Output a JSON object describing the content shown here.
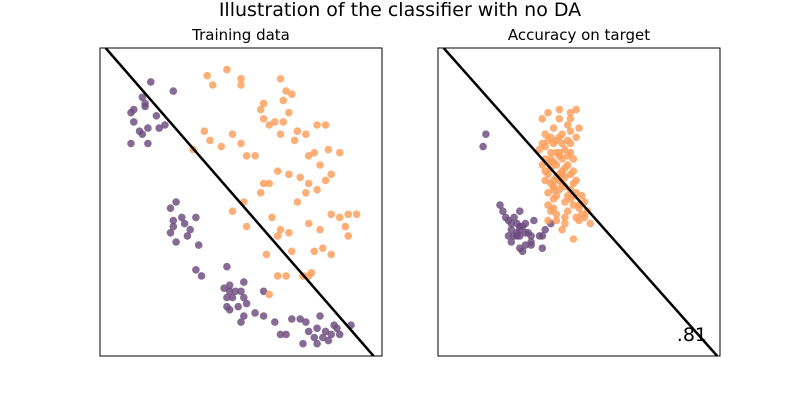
{
  "figure": {
    "title": "Illustration of the classifier with no DA"
  },
  "colors": {
    "class_0": "#6b4c7e",
    "class_1": "#fc9d59",
    "boundary": "#000000"
  },
  "chart_data": [
    {
      "type": "scatter",
      "title": "Training data",
      "xlabel": "",
      "ylabel": "",
      "xlim": [
        0,
        10
      ],
      "ylim": [
        0,
        10
      ],
      "ticks": "none",
      "decision_boundary": {
        "x": [
          0.2,
          9.7
        ],
        "y": [
          10.0,
          0.0
        ]
      },
      "series": [
        {
          "class": 0,
          "points": [
            [
              1.6,
              8.1
            ],
            [
              1.5,
              8.4
            ],
            [
              1.1,
              7.9
            ],
            [
              2.3,
              7.5
            ],
            [
              1.8,
              8.9
            ],
            [
              1.2,
              7.6
            ],
            [
              1.5,
              7.2
            ],
            [
              1.7,
              7.4
            ],
            [
              1.1,
              6.9
            ],
            [
              1.7,
              6.9
            ],
            [
              2.6,
              8.6
            ],
            [
              2.0,
              7.8
            ],
            [
              2.1,
              7.4
            ],
            [
              1.6,
              8.2
            ],
            [
              1.2,
              8.0
            ],
            [
              1.4,
              7.3
            ],
            [
              2.7,
              5.0
            ],
            [
              2.5,
              4.8
            ],
            [
              2.9,
              4.5
            ],
            [
              2.6,
              4.2
            ],
            [
              3.4,
              4.5
            ],
            [
              3.1,
              3.9
            ],
            [
              3.2,
              4.1
            ],
            [
              3.0,
              4.3
            ],
            [
              2.6,
              4.4
            ],
            [
              2.5,
              4.0
            ],
            [
              2.7,
              3.7
            ],
            [
              3.5,
              3.6
            ],
            [
              3.4,
              2.8
            ],
            [
              3.6,
              2.6
            ],
            [
              4.5,
              2.9
            ],
            [
              4.6,
              2.1
            ],
            [
              4.8,
              2.1
            ],
            [
              5.1,
              2.4
            ],
            [
              4.4,
              2.2
            ],
            [
              4.7,
              1.9
            ],
            [
              4.9,
              1.6
            ],
            [
              5.1,
              1.3
            ],
            [
              5.2,
              1.7
            ],
            [
              4.6,
              2.3
            ],
            [
              4.6,
              1.5
            ],
            [
              4.5,
              1.6
            ],
            [
              4.5,
              1.9
            ],
            [
              5.5,
              1.4
            ],
            [
              5.0,
              2.1
            ],
            [
              5.8,
              2.1
            ],
            [
              5.1,
              1.9
            ],
            [
              5.0,
              1.1
            ],
            [
              5.8,
              1.3
            ],
            [
              6.2,
              1.1
            ],
            [
              6.8,
              1.2
            ],
            [
              7.1,
              1.2
            ],
            [
              7.3,
              1.1
            ],
            [
              7.7,
              0.9
            ],
            [
              7.8,
              1.3
            ],
            [
              8.3,
              1.0
            ],
            [
              8.2,
              0.7
            ],
            [
              7.6,
              0.6
            ],
            [
              6.6,
              0.7
            ],
            [
              7.4,
              0.8
            ],
            [
              8.9,
              1.0
            ],
            [
              8.4,
              0.9
            ],
            [
              8.0,
              0.8
            ],
            [
              7.9,
              0.6
            ],
            [
              7.7,
              0.4
            ],
            [
              8.5,
              0.7
            ],
            [
              8.1,
              0.5
            ],
            [
              7.2,
              0.4
            ],
            [
              6.4,
              0.7
            ]
          ]
        },
        {
          "class": 1,
          "points": [
            [
              4.5,
              9.3
            ],
            [
              5.0,
              8.8
            ],
            [
              5.0,
              9.0
            ],
            [
              4.0,
              8.8
            ],
            [
              3.8,
              9.1
            ],
            [
              6.5,
              8.3
            ],
            [
              6.8,
              8.5
            ],
            [
              6.4,
              9.0
            ],
            [
              6.6,
              8.6
            ],
            [
              5.7,
              8.0
            ],
            [
              5.8,
              8.2
            ],
            [
              5.8,
              7.7
            ],
            [
              6.0,
              7.5
            ],
            [
              6.2,
              7.6
            ],
            [
              6.4,
              7.2
            ],
            [
              6.5,
              7.6
            ],
            [
              6.7,
              7.9
            ],
            [
              6.9,
              7.0
            ],
            [
              7.0,
              7.3
            ],
            [
              7.3,
              7.2
            ],
            [
              7.6,
              6.6
            ],
            [
              7.7,
              7.5
            ],
            [
              8.0,
              7.5
            ],
            [
              8.1,
              6.7
            ],
            [
              7.4,
              6.5
            ],
            [
              7.8,
              6.2
            ],
            [
              8.5,
              6.6
            ],
            [
              8.2,
              5.9
            ],
            [
              8.0,
              5.7
            ],
            [
              7.7,
              5.4
            ],
            [
              7.4,
              5.6
            ],
            [
              7.1,
              5.8
            ],
            [
              7.3,
              5.3
            ],
            [
              7.0,
              5.0
            ],
            [
              6.7,
              5.9
            ],
            [
              6.3,
              6.0
            ],
            [
              5.5,
              6.5
            ],
            [
              5.2,
              6.5
            ],
            [
              5.0,
              6.9
            ],
            [
              4.7,
              7.2
            ],
            [
              4.3,
              6.8
            ],
            [
              3.7,
              7.3
            ],
            [
              3.9,
              7.0
            ],
            [
              3.3,
              6.7
            ],
            [
              5.1,
              5.0
            ],
            [
              5.7,
              5.3
            ],
            [
              5.8,
              5.6
            ],
            [
              6.0,
              5.6
            ],
            [
              6.1,
              4.5
            ],
            [
              6.4,
              4.1
            ],
            [
              6.7,
              4.0
            ],
            [
              6.8,
              3.4
            ],
            [
              7.6,
              3.4
            ],
            [
              7.9,
              3.5
            ],
            [
              8.2,
              3.3
            ],
            [
              8.5,
              4.5
            ],
            [
              8.7,
              4.2
            ],
            [
              8.8,
              4.6
            ],
            [
              9.1,
              4.6
            ],
            [
              8.8,
              3.9
            ],
            [
              8.2,
              4.6
            ],
            [
              7.8,
              4.1
            ],
            [
              7.4,
              4.3
            ],
            [
              6.3,
              3.9
            ],
            [
              7.2,
              2.6
            ],
            [
              7.5,
              2.7
            ],
            [
              7.4,
              2.6
            ],
            [
              6.6,
              2.6
            ],
            [
              6.3,
              2.6
            ],
            [
              6.0,
              2.0
            ],
            [
              5.9,
              3.3
            ],
            [
              5.2,
              4.2
            ],
            [
              4.7,
              4.7
            ]
          ]
        }
      ]
    },
    {
      "type": "scatter",
      "title": "Accuracy on target",
      "xlabel": "",
      "ylabel": "",
      "xlim": [
        0,
        10
      ],
      "ylim": [
        0,
        10
      ],
      "ticks": "none",
      "annotation": ".81",
      "decision_boundary": {
        "x": [
          0.2,
          9.9
        ],
        "y": [
          10.0,
          0.0
        ]
      },
      "series": [
        {
          "class": 0,
          "points": [
            [
              1.7,
              7.2
            ],
            [
              1.6,
              6.8
            ],
            [
              2.2,
              4.9
            ],
            [
              2.3,
              4.7
            ],
            [
              2.4,
              4.5
            ],
            [
              2.5,
              4.4
            ],
            [
              2.6,
              4.1
            ],
            [
              2.8,
              4.3
            ],
            [
              2.7,
              4.5
            ],
            [
              2.9,
              4.7
            ],
            [
              2.9,
              4.2
            ],
            [
              3.0,
              4.2
            ],
            [
              3.1,
              4.0
            ],
            [
              2.8,
              3.9
            ],
            [
              2.6,
              3.7
            ],
            [
              2.9,
              3.9
            ],
            [
              3.1,
              3.6
            ],
            [
              3.3,
              3.9
            ],
            [
              3.0,
              3.4
            ],
            [
              3.2,
              4.0
            ],
            [
              3.3,
              3.6
            ],
            [
              3.6,
              3.9
            ],
            [
              3.7,
              3.9
            ],
            [
              3.8,
              4.1
            ],
            [
              4.0,
              4.3
            ],
            [
              3.7,
              3.5
            ],
            [
              2.5,
              3.9
            ],
            [
              2.7,
              3.9
            ],
            [
              2.8,
              4.0
            ],
            [
              2.9,
              4.1
            ],
            [
              3.4,
              4.4
            ],
            [
              3.3,
              3.7
            ],
            [
              2.9,
              3.5
            ],
            [
              2.6,
              4.3
            ],
            [
              3.1,
              4.3
            ]
          ]
        },
        {
          "class": 1,
          "points": [
            [
              3.7,
              7.7
            ],
            [
              3.8,
              7.2
            ],
            [
              3.9,
              7.0
            ],
            [
              4.1,
              7.4
            ],
            [
              3.9,
              7.9
            ],
            [
              4.3,
              7.7
            ],
            [
              4.7,
              7.7
            ],
            [
              4.7,
              7.3
            ],
            [
              4.7,
              6.9
            ],
            [
              4.6,
              7.0
            ],
            [
              4.3,
              7.1
            ],
            [
              4.4,
              6.9
            ],
            [
              4.0,
              6.6
            ],
            [
              3.8,
              6.8
            ],
            [
              3.6,
              6.7
            ],
            [
              3.7,
              6.9
            ],
            [
              3.8,
              6.4
            ],
            [
              4.0,
              6.4
            ],
            [
              4.1,
              6.3
            ],
            [
              4.2,
              6.6
            ],
            [
              4.3,
              6.5
            ],
            [
              4.4,
              6.4
            ],
            [
              4.6,
              6.2
            ],
            [
              4.7,
              6.6
            ],
            [
              4.8,
              6.4
            ],
            [
              4.5,
              6.1
            ],
            [
              4.3,
              5.9
            ],
            [
              4.2,
              6.2
            ],
            [
              4.0,
              6.1
            ],
            [
              3.9,
              5.9
            ],
            [
              4.1,
              5.7
            ],
            [
              4.3,
              5.7
            ],
            [
              4.5,
              5.8
            ],
            [
              4.7,
              5.9
            ],
            [
              4.8,
              5.6
            ],
            [
              4.5,
              5.5
            ],
            [
              4.3,
              5.4
            ],
            [
              4.1,
              5.4
            ],
            [
              4.2,
              5.2
            ],
            [
              4.6,
              5.2
            ],
            [
              4.9,
              5.3
            ],
            [
              4.7,
              5.1
            ],
            [
              4.5,
              5.0
            ],
            [
              4.8,
              4.9
            ],
            [
              5.0,
              4.8
            ],
            [
              5.1,
              5.2
            ],
            [
              5.2,
              5.0
            ],
            [
              5.1,
              4.6
            ],
            [
              5.4,
              4.3
            ],
            [
              4.0,
              5.6
            ],
            [
              3.8,
              5.7
            ],
            [
              4.4,
              5.9
            ],
            [
              3.7,
              6.2
            ],
            [
              4.1,
              6.9
            ],
            [
              4.2,
              7.0
            ],
            [
              4.9,
              7.1
            ],
            [
              4.6,
              7.5
            ],
            [
              4.4,
              6.0
            ],
            [
              4.6,
              6.5
            ],
            [
              4.8,
              6.0
            ],
            [
              4.9,
              5.7
            ],
            [
              4.4,
              5.6
            ],
            [
              4.9,
              4.5
            ],
            [
              4.6,
              4.7
            ],
            [
              4.1,
              5.1
            ],
            [
              3.9,
              5.3
            ],
            [
              4.3,
              8.0
            ],
            [
              4.0,
              7.1
            ],
            [
              3.8,
              6.0
            ],
            [
              4.2,
              5.8
            ],
            [
              4.5,
              6.7
            ],
            [
              5.0,
              4.9
            ],
            [
              4.7,
              5.4
            ],
            [
              4.2,
              4.6
            ],
            [
              3.9,
              4.9
            ],
            [
              5.2,
              4.5
            ],
            [
              5.0,
              7.4
            ],
            [
              4.9,
              8.0
            ],
            [
              4.7,
              7.9
            ],
            [
              4.4,
              7.2
            ],
            [
              4.3,
              6.6
            ],
            [
              4.0,
              6.3
            ],
            [
              4.1,
              5.5
            ],
            [
              4.8,
              5.2
            ],
            [
              5.3,
              4.7
            ],
            [
              5.0,
              4.4
            ],
            [
              4.5,
              4.3
            ],
            [
              4.2,
              4.4
            ],
            [
              3.9,
              4.4
            ],
            [
              4.0,
              4.7
            ],
            [
              4.5,
              4.5
            ],
            [
              4.1,
              4.8
            ],
            [
              4.4,
              4.1
            ],
            [
              4.8,
              3.8
            ]
          ]
        }
      ]
    }
  ]
}
